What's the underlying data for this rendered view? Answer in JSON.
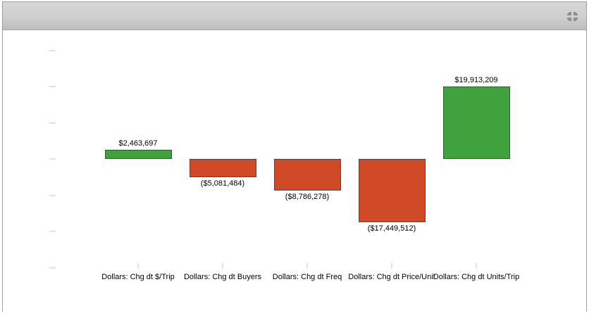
{
  "window": {
    "header": {
      "icon": "maximize"
    }
  },
  "chart_data": {
    "type": "bar",
    "title": "",
    "xlabel": "",
    "ylabel": "",
    "categories": [
      "Dollars: Chg dt $/Trip",
      "Dollars: Chg dt Buyers",
      "Dollars: Chg dt Freq",
      "Dollars: Chg dt Price/Unit",
      "Dollars: Chg dt Units/Trip"
    ],
    "values": [
      2463697,
      -5081484,
      -8786278,
      -17449512,
      19913209
    ],
    "data_labels": [
      "$2,463,697",
      "($5,081,484)",
      "($8,786,278)",
      "($17,449,512)",
      "$19,913,209"
    ],
    "ylim": [
      -30000000,
      30000000
    ],
    "y_tick_interval": 10000000,
    "y_tick_labels_visible": false,
    "grid": false,
    "legend": false,
    "colors": {
      "positive": "#3fa23c",
      "negative": "#d14a28",
      "bar_border": "#4a4a4a",
      "axis_tick": "#d9e6f2"
    }
  }
}
